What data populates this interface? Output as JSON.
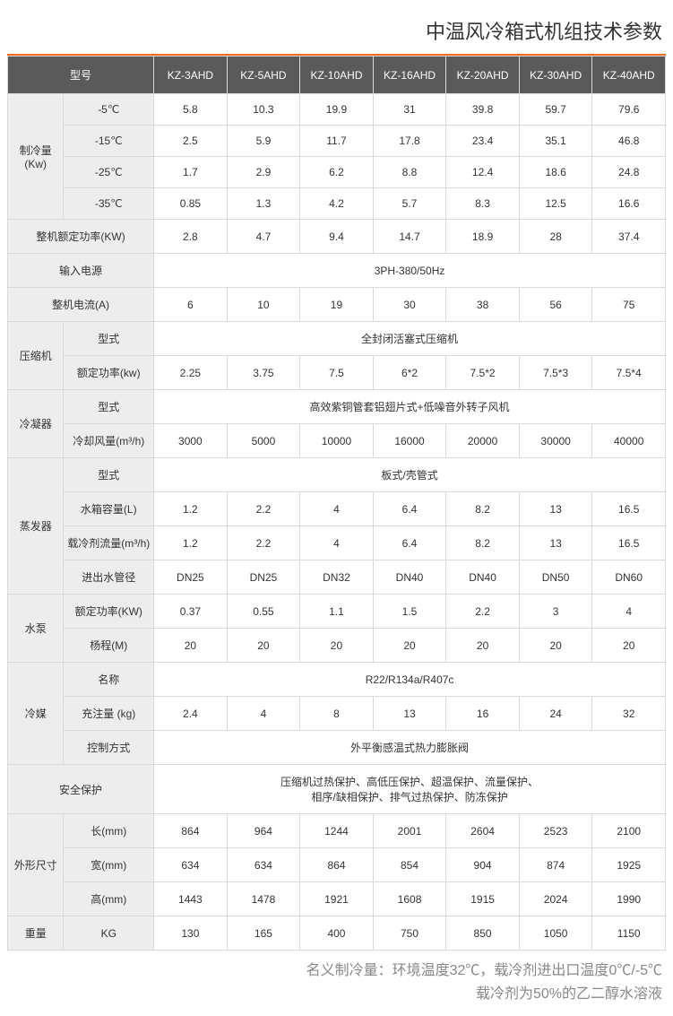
{
  "title": "中温风冷箱式机组技术参数",
  "colors": {
    "accent": "#f36b21",
    "header_bg": "#5a5a5a",
    "header_fg": "#ffffff",
    "label_bg": "#ededed",
    "border": "#d9d9d9",
    "text": "#333333",
    "footnote": "#888888"
  },
  "models": [
    "KZ-3AHD",
    "KZ-5AHD",
    "KZ-10AHD",
    "KZ-16AHD",
    "KZ-20AHD",
    "KZ-30AHD",
    "KZ-40AHD"
  ],
  "header_model_label": "型号",
  "rows": [
    {
      "cat": "制冷量(Kw)",
      "cat_rowspan": 4,
      "sub": "-5℃",
      "vals": [
        "5.8",
        "10.3",
        "19.9",
        "31",
        "39.8",
        "59.7",
        "79.6"
      ]
    },
    {
      "sub": "-15℃",
      "vals": [
        "2.5",
        "5.9",
        "11.7",
        "17.8",
        "23.4",
        "35.1",
        "46.8"
      ]
    },
    {
      "sub": "-25℃",
      "vals": [
        "1.7",
        "2.9",
        "6.2",
        "8.8",
        "12.4",
        "18.6",
        "24.8"
      ]
    },
    {
      "sub": "-35℃",
      "vals": [
        "0.85",
        "1.3",
        "4.2",
        "5.7",
        "8.3",
        "12.5",
        "16.6"
      ]
    },
    {
      "full_label": "整机额定功率(KW)",
      "vals": [
        "2.8",
        "4.7",
        "9.4",
        "14.7",
        "18.9",
        "28",
        "37.4"
      ]
    },
    {
      "full_label": "输入电源",
      "merged": "3PH-380/50Hz"
    },
    {
      "full_label": "整机电流(A)",
      "vals": [
        "6",
        "10",
        "19",
        "30",
        "38",
        "56",
        "75"
      ]
    },
    {
      "cat": "压缩机",
      "cat_rowspan": 2,
      "sub": "型式",
      "merged": "全封闭活塞式压缩机"
    },
    {
      "sub": "额定功率(kw)",
      "vals": [
        "2.25",
        "3.75",
        "7.5",
        "6*2",
        "7.5*2",
        "7.5*3",
        "7.5*4"
      ]
    },
    {
      "cat": "冷凝器",
      "cat_rowspan": 2,
      "sub": "型式",
      "merged": "高效紫铜管套铝翅片式+低噪音外转子风机"
    },
    {
      "sub": "冷却风量(m³/h)",
      "vals": [
        "3000",
        "5000",
        "10000",
        "16000",
        "20000",
        "30000",
        "40000"
      ]
    },
    {
      "cat": "蒸发器",
      "cat_rowspan": 4,
      "sub": "型式",
      "merged": "板式/壳管式"
    },
    {
      "sub": "水箱容量(L)",
      "vals": [
        "1.2",
        "2.2",
        "4",
        "6.4",
        "8.2",
        "13",
        "16.5"
      ]
    },
    {
      "sub": "载冷剂流量(m³/h)",
      "vals": [
        "1.2",
        "2.2",
        "4",
        "6.4",
        "8.2",
        "13",
        "16.5"
      ]
    },
    {
      "sub": "进出水管径",
      "vals": [
        "DN25",
        "DN25",
        "DN32",
        "DN40",
        "DN40",
        "DN50",
        "DN60"
      ]
    },
    {
      "cat": "水泵",
      "cat_rowspan": 2,
      "sub": "额定功率(KW)",
      "vals": [
        "0.37",
        "0.55",
        "1.1",
        "1.5",
        "2.2",
        "3",
        "4"
      ]
    },
    {
      "sub": "杨程(M)",
      "vals": [
        "20",
        "20",
        "20",
        "20",
        "20",
        "20",
        "20"
      ]
    },
    {
      "cat": "冷媒",
      "cat_rowspan": 3,
      "sub": "名称",
      "merged": "R22/R134a/R407c"
    },
    {
      "sub": "充注量 (kg)",
      "vals": [
        "2.4",
        "4",
        "8",
        "13",
        "16",
        "24",
        "32"
      ]
    },
    {
      "sub": "控制方式",
      "merged": "外平衡感温式热力膨胀阀"
    },
    {
      "full_label": "安全保护",
      "merged": "压缩机过热保护、高低压保护、超温保护、流量保护、\n相序/缺相保护、排气过热保护、防冻保护"
    },
    {
      "cat": "外形尺寸",
      "cat_rowspan": 3,
      "sub": "长(mm)",
      "vals": [
        "864",
        "964",
        "1244",
        "2001",
        "2604",
        "2523",
        "2100"
      ]
    },
    {
      "sub": "宽(mm)",
      "vals": [
        "634",
        "634",
        "864",
        "854",
        "904",
        "874",
        "1925"
      ]
    },
    {
      "sub": "高(mm)",
      "vals": [
        "1443",
        "1478",
        "1921",
        "1608",
        "1915",
        "2024",
        "1990"
      ]
    },
    {
      "cat": "重量",
      "cat_rowspan": 1,
      "sub": "KG",
      "vals": [
        "130",
        "165",
        "400",
        "750",
        "850",
        "1050",
        "1150"
      ]
    }
  ],
  "footnote": "名义制冷量：环境温度32℃，载冷剂进出口温度0℃/-5℃\n载冷剂为50%的乙二醇水溶液"
}
